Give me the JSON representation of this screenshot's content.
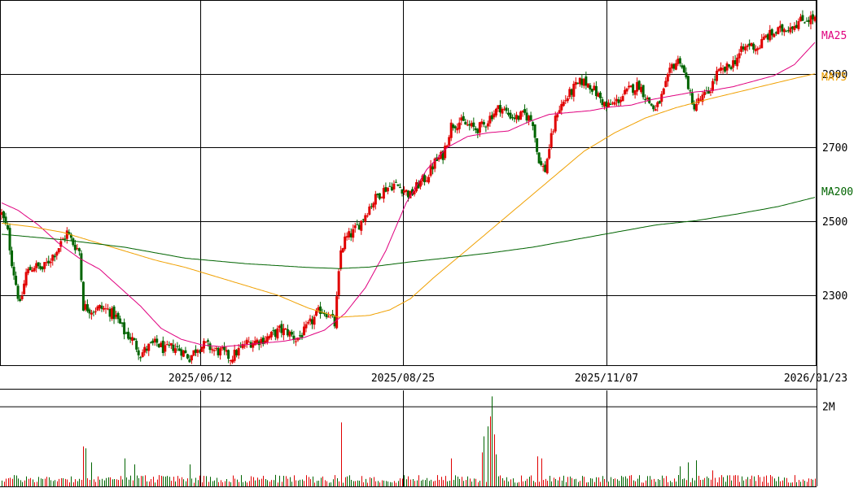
{
  "chart_data": [
    {
      "type": "candlestick",
      "title": "",
      "x_tick_labels": [
        "2025/06/12",
        "2025/08/25",
        "2025/11/07",
        "2026/01/23"
      ],
      "y_tick_labels": [
        "2300",
        "2500",
        "2700",
        "2900"
      ],
      "y_ticks": [
        2300,
        2500,
        2700,
        2900
      ],
      "ylim": [
        2110,
        3100
      ],
      "grid": true,
      "series": [
        {
          "name": "MA25",
          "color": "#e0007f",
          "anchors": [
            [
              0,
              2550
            ],
            [
              8,
              2530
            ],
            [
              18,
              2490
            ],
            [
              28,
              2440
            ],
            [
              38,
              2400
            ],
            [
              48,
              2370
            ],
            [
              58,
              2320
            ],
            [
              68,
              2270
            ],
            [
              78,
              2210
            ],
            [
              88,
              2180
            ],
            [
              98,
              2165
            ],
            [
              108,
              2160
            ],
            [
              118,
              2165
            ],
            [
              128,
              2170
            ],
            [
              138,
              2175
            ],
            [
              148,
              2185
            ],
            [
              158,
              2205
            ],
            [
              168,
              2250
            ],
            [
              178,
              2320
            ],
            [
              188,
              2420
            ],
            [
              198,
              2550
            ],
            [
              208,
              2640
            ],
            [
              218,
              2700
            ],
            [
              228,
              2730
            ],
            [
              238,
              2740
            ],
            [
              248,
              2745
            ],
            [
              258,
              2770
            ],
            [
              268,
              2790
            ],
            [
              278,
              2795
            ],
            [
              288,
              2800
            ],
            [
              298,
              2810
            ],
            [
              308,
              2815
            ],
            [
              318,
              2830
            ],
            [
              328,
              2840
            ],
            [
              338,
              2850
            ],
            [
              348,
              2855
            ],
            [
              358,
              2865
            ],
            [
              368,
              2880
            ],
            [
              378,
              2895
            ],
            [
              388,
              2925
            ],
            [
              398,
              2985
            ]
          ]
        },
        {
          "name": "MA75",
          "color": "#f0a000",
          "anchors": [
            [
              0,
              2495
            ],
            [
              15,
              2485
            ],
            [
              30,
              2470
            ],
            [
              45,
              2445
            ],
            [
              60,
              2420
            ],
            [
              75,
              2395
            ],
            [
              90,
              2375
            ],
            [
              105,
              2350
            ],
            [
              120,
              2325
            ],
            [
              135,
              2300
            ],
            [
              150,
              2265
            ],
            [
              165,
              2240
            ],
            [
              180,
              2245
            ],
            [
              190,
              2260
            ],
            [
              200,
              2290
            ],
            [
              212,
              2350
            ],
            [
              225,
              2410
            ],
            [
              240,
              2480
            ],
            [
              255,
              2550
            ],
            [
              270,
              2620
            ],
            [
              285,
              2690
            ],
            [
              300,
              2740
            ],
            [
              315,
              2780
            ],
            [
              330,
              2808
            ],
            [
              345,
              2830
            ],
            [
              360,
              2850
            ],
            [
              375,
              2870
            ],
            [
              390,
              2890
            ],
            [
              398,
              2900
            ]
          ]
        },
        {
          "name": "MA200",
          "color": "#006400",
          "anchors": [
            [
              0,
              2465
            ],
            [
              30,
              2450
            ],
            [
              60,
              2430
            ],
            [
              90,
              2400
            ],
            [
              120,
              2385
            ],
            [
              150,
              2375
            ],
            [
              165,
              2372
            ],
            [
              180,
              2376
            ],
            [
              200,
              2390
            ],
            [
              220,
              2402
            ],
            [
              240,
              2415
            ],
            [
              260,
              2430
            ],
            [
              280,
              2450
            ],
            [
              300,
              2470
            ],
            [
              320,
              2490
            ],
            [
              340,
              2502
            ],
            [
              360,
              2520
            ],
            [
              380,
              2540
            ],
            [
              398,
              2565
            ]
          ]
        }
      ],
      "price_anchors": [
        [
          0,
          2520
        ],
        [
          3,
          2470
        ],
        [
          5,
          2390
        ],
        [
          9,
          2270
        ],
        [
          12,
          2360
        ],
        [
          16,
          2380
        ],
        [
          20,
          2370
        ],
        [
          24,
          2400
        ],
        [
          28,
          2430
        ],
        [
          32,
          2470
        ],
        [
          35,
          2440
        ],
        [
          38,
          2420
        ],
        [
          40,
          2270
        ],
        [
          44,
          2260
        ],
        [
          48,
          2265
        ],
        [
          52,
          2260
        ],
        [
          56,
          2240
        ],
        [
          60,
          2200
        ],
        [
          64,
          2180
        ],
        [
          68,
          2140
        ],
        [
          72,
          2160
        ],
        [
          76,
          2170
        ],
        [
          80,
          2150
        ],
        [
          84,
          2160
        ],
        [
          88,
          2150
        ],
        [
          92,
          2130
        ],
        [
          96,
          2160
        ],
        [
          100,
          2165
        ],
        [
          104,
          2150
        ],
        [
          108,
          2145
        ],
        [
          112,
          2130
        ],
        [
          116,
          2150
        ],
        [
          120,
          2170
        ],
        [
          124,
          2175
        ],
        [
          128,
          2180
        ],
        [
          132,
          2190
        ],
        [
          136,
          2205
        ],
        [
          140,
          2200
        ],
        [
          144,
          2180
        ],
        [
          148,
          2200
        ],
        [
          152,
          2230
        ],
        [
          156,
          2260
        ],
        [
          160,
          2250
        ],
        [
          163,
          2220
        ],
        [
          166,
          2420
        ],
        [
          168,
          2450
        ],
        [
          172,
          2470
        ],
        [
          176,
          2500
        ],
        [
          180,
          2540
        ],
        [
          184,
          2570
        ],
        [
          188,
          2590
        ],
        [
          192,
          2600
        ],
        [
          196,
          2590
        ],
        [
          200,
          2570
        ],
        [
          204,
          2600
        ],
        [
          208,
          2620
        ],
        [
          212,
          2660
        ],
        [
          216,
          2680
        ],
        [
          220,
          2760
        ],
        [
          224,
          2770
        ],
        [
          228,
          2760
        ],
        [
          232,
          2750
        ],
        [
          236,
          2760
        ],
        [
          240,
          2790
        ],
        [
          244,
          2810
        ],
        [
          248,
          2790
        ],
        [
          252,
          2780
        ],
        [
          256,
          2790
        ],
        [
          260,
          2770
        ],
        [
          262,
          2690
        ],
        [
          264,
          2650
        ],
        [
          266,
          2640
        ],
        [
          268,
          2700
        ],
        [
          272,
          2800
        ],
        [
          276,
          2830
        ],
        [
          280,
          2860
        ],
        [
          284,
          2880
        ],
        [
          288,
          2870
        ],
        [
          292,
          2840
        ],
        [
          296,
          2810
        ],
        [
          300,
          2820
        ],
        [
          304,
          2840
        ],
        [
          308,
          2860
        ],
        [
          312,
          2870
        ],
        [
          316,
          2830
        ],
        [
          320,
          2800
        ],
        [
          324,
          2850
        ],
        [
          328,
          2920
        ],
        [
          332,
          2940
        ],
        [
          334,
          2900
        ],
        [
          336,
          2870
        ],
        [
          338,
          2810
        ],
        [
          342,
          2830
        ],
        [
          346,
          2850
        ],
        [
          350,
          2900
        ],
        [
          354,
          2910
        ],
        [
          358,
          2930
        ],
        [
          362,
          2960
        ],
        [
          366,
          2980
        ],
        [
          370,
          2970
        ],
        [
          374,
          3000
        ],
        [
          378,
          3010
        ],
        [
          382,
          3020
        ],
        [
          386,
          3030
        ],
        [
          390,
          3040
        ],
        [
          394,
          3050
        ],
        [
          398,
          3050
        ]
      ],
      "n_days": 399
    },
    {
      "type": "bar",
      "title": "",
      "y_tick_labels": [
        "2M"
      ],
      "y_ticks": [
        2000000
      ],
      "ylim": [
        0,
        2400000
      ],
      "spikes": [
        [
          40,
          1000000
        ],
        [
          41,
          950000
        ],
        [
          44,
          600000
        ],
        [
          60,
          700000
        ],
        [
          65,
          550000
        ],
        [
          92,
          550000
        ],
        [
          166,
          1600000
        ],
        [
          220,
          700000
        ],
        [
          235,
          850000
        ],
        [
          236,
          1250000
        ],
        [
          238,
          1500000
        ],
        [
          239,
          1750000
        ],
        [
          240,
          2250000
        ],
        [
          241,
          1300000
        ],
        [
          242,
          800000
        ],
        [
          262,
          750000
        ],
        [
          264,
          700000
        ],
        [
          332,
          500000
        ],
        [
          336,
          600000
        ],
        [
          340,
          650000
        ],
        [
          348,
          400000
        ]
      ],
      "base_volume": 180000
    }
  ],
  "colors": {
    "up": "#e00000",
    "down": "#006400",
    "grid": "#000000",
    "label": "#000000"
  },
  "ma_labels": [
    {
      "text": "MA25",
      "color": "#e0007f"
    },
    {
      "text": "MA75",
      "color": "#f0a000"
    },
    {
      "text": "MA200",
      "color": "#006400"
    }
  ]
}
